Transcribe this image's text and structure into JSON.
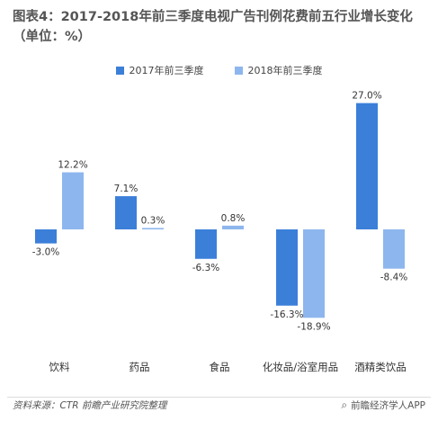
{
  "chart_data": {
    "type": "bar",
    "title": "图表4：2017-2018年前三季度电视广告刊例花费前五行业增长变化（单位：%）",
    "categories": [
      "饮料",
      "药品",
      "食品",
      "化妆品/浴室用品",
      "酒精类饮品"
    ],
    "series": [
      {
        "name": "2017年前三季度",
        "values": [
          -3.0,
          7.1,
          -6.3,
          -16.3,
          27.0
        ],
        "labels": [
          "-3.0%",
          "7.1%",
          "-6.3%",
          "-16.3%",
          "27.0%"
        ],
        "color": "#3b7fd9"
      },
      {
        "name": "2018年前三季度",
        "values": [
          12.2,
          0.3,
          0.8,
          -18.9,
          -8.4
        ],
        "labels": [
          "12.2%",
          "0.3%",
          "0.8%",
          "-18.9%",
          "-8.4%"
        ],
        "color": "#8db6ee"
      }
    ],
    "ylim": [
      -20,
      30
    ],
    "xlabel": "",
    "ylabel": "",
    "grid": false,
    "legend_position": "top-center"
  },
  "footer": {
    "source": "资料来源：CTR  前瞻产业研究院整理",
    "brand_glyph": "⌕",
    "brand": "前瞻经济学人APP"
  }
}
